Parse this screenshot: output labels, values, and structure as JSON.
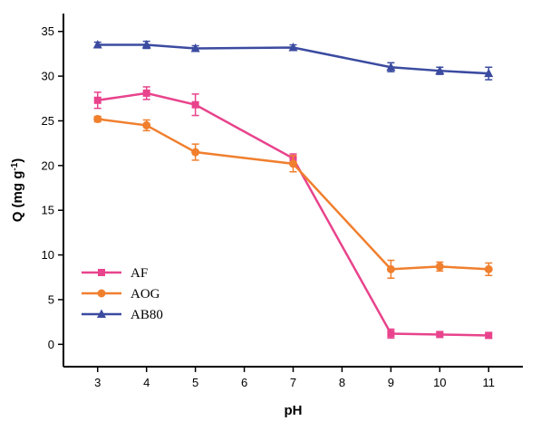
{
  "chart_data": {
    "type": "line",
    "xlabel": "pH",
    "ylabel_main": "Q (mg g",
    "ylabel_sup": "-1",
    "ylabel_close": ")",
    "x": [
      3,
      4,
      5,
      7,
      9,
      10,
      11
    ],
    "xticks": [
      3,
      4,
      5,
      6,
      7,
      8,
      9,
      10,
      11
    ],
    "yticks": [
      0,
      5,
      10,
      15,
      20,
      25,
      30,
      35
    ],
    "xlim": [
      2.3,
      11.7
    ],
    "ylim": [
      -2.5,
      37
    ],
    "grid": false,
    "legend_position": "bottom-left",
    "series": [
      {
        "name": "AF",
        "marker": "square",
        "color": "#e8438c",
        "values": [
          27.3,
          28.1,
          26.8,
          20.8,
          1.2,
          1.1,
          1.0
        ],
        "errors": [
          0.9,
          0.7,
          1.2,
          0.5,
          0.5,
          0.3,
          0.3
        ]
      },
      {
        "name": "AOG",
        "marker": "circle",
        "color": "#f07f2e",
        "values": [
          25.2,
          24.5,
          21.5,
          20.2,
          8.4,
          8.7,
          8.4
        ],
        "errors": [
          0.3,
          0.6,
          0.9,
          0.9,
          1.0,
          0.5,
          0.7
        ]
      },
      {
        "name": "AB80",
        "marker": "triangle",
        "color": "#3b4ba0",
        "values": [
          33.5,
          33.5,
          33.1,
          33.2,
          31.0,
          30.6,
          30.3
        ],
        "errors": [
          0.3,
          0.4,
          0.3,
          0.3,
          0.5,
          0.4,
          0.7
        ]
      }
    ]
  }
}
